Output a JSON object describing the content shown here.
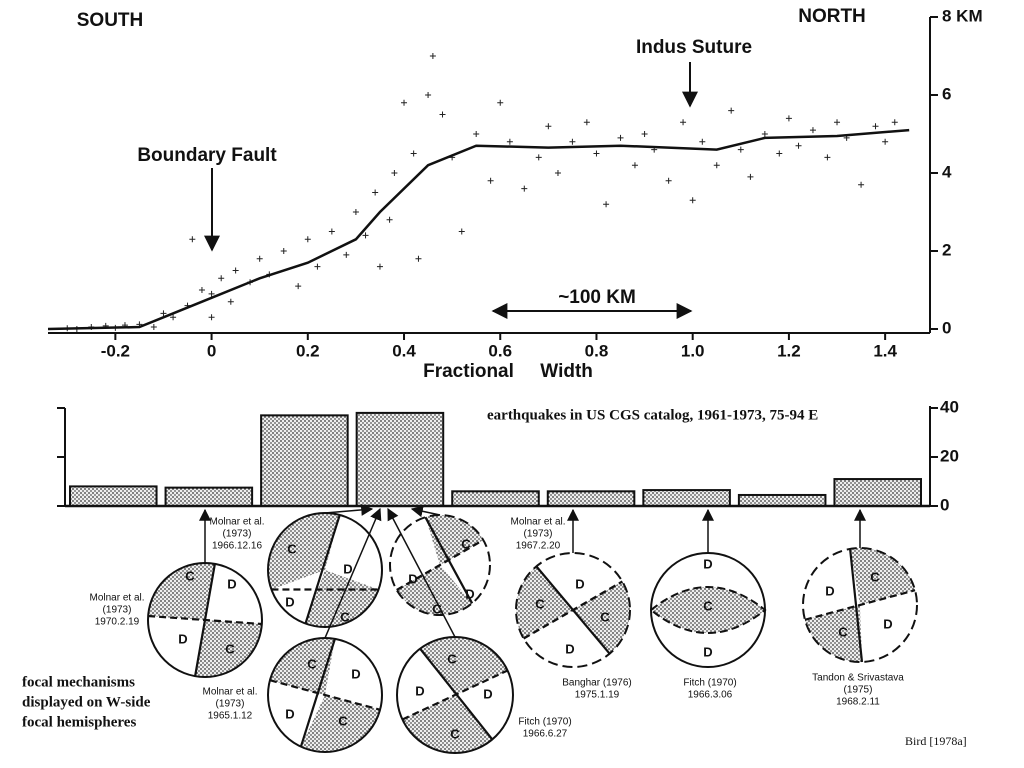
{
  "chart_data": [
    {
      "type": "line",
      "south": "SOUTH",
      "north": "NORTH",
      "xlabel": "Fractional     Width",
      "annotations": [
        "Boundary Fault",
        "Indus Suture",
        "~100 KM"
      ],
      "x": [
        -0.34,
        -0.15,
        -0.1,
        0,
        0.1,
        0.2,
        0.3,
        0.35,
        0.45,
        0.55,
        0.7,
        0.85,
        1.05,
        1.15,
        1.3,
        1.45
      ],
      "values": [
        0,
        0.05,
        0.3,
        0.8,
        1.3,
        1.7,
        2.3,
        3.0,
        4.2,
        4.7,
        4.65,
        4.7,
        4.6,
        4.9,
        4.95,
        5.1
      ],
      "scatter_x": [
        -0.3,
        -0.28,
        -0.25,
        -0.22,
        -0.2,
        -0.18,
        -0.15,
        -0.12,
        -0.1,
        -0.08,
        -0.05,
        -0.04,
        -0.02,
        0,
        0,
        0.02,
        0.04,
        0.05,
        0.08,
        0.1,
        0.12,
        0.15,
        0.18,
        0.2,
        0.22,
        0.25,
        0.28,
        0.3,
        0.32,
        0.34,
        0.35,
        0.37,
        0.38,
        0.4,
        0.42,
        0.43,
        0.45,
        0.46,
        0.48,
        0.5,
        0.52,
        0.55,
        0.58,
        0.6,
        0.62,
        0.65,
        0.68,
        0.7,
        0.72,
        0.75,
        0.78,
        0.8,
        0.82,
        0.85,
        0.88,
        0.9,
        0.92,
        0.95,
        0.98,
        1.0,
        1.02,
        1.05,
        1.08,
        1.1,
        1.12,
        1.15,
        1.18,
        1.2,
        1.22,
        1.25,
        1.28,
        1.3,
        1.32,
        1.35,
        1.38,
        1.4,
        1.42
      ],
      "scatter_y": [
        0.02,
        0,
        0.05,
        0.08,
        0.03,
        0.1,
        0.12,
        0.05,
        0.4,
        0.3,
        0.6,
        2.3,
        1.0,
        0.9,
        0.3,
        1.3,
        0.7,
        1.5,
        1.2,
        1.8,
        1.4,
        2.0,
        1.1,
        2.3,
        1.6,
        2.5,
        1.9,
        3.0,
        2.4,
        3.5,
        1.6,
        2.8,
        4.0,
        5.8,
        4.5,
        1.8,
        6.0,
        7.0,
        5.5,
        4.4,
        2.5,
        5.0,
        3.8,
        5.8,
        4.8,
        3.6,
        4.4,
        5.2,
        4.0,
        4.8,
        5.3,
        4.5,
        3.2,
        4.9,
        4.2,
        5.0,
        4.6,
        3.8,
        5.3,
        3.3,
        4.8,
        4.2,
        5.6,
        4.6,
        3.9,
        5.0,
        4.5,
        5.4,
        4.7,
        5.1,
        4.4,
        5.3,
        4.9,
        3.7,
        5.2,
        4.8,
        5.3
      ],
      "xlim": [
        -0.34,
        1.46
      ],
      "ylim": [
        0,
        8
      ],
      "xticks": [
        -0.2,
        0,
        0.2,
        0.4,
        0.6,
        0.8,
        {
          "value": 1,
          "label": "1.0"
        },
        1.2,
        1.4
      ],
      "yticks": [
        0,
        2,
        4,
        6,
        {
          "value": 8,
          "label": "8 KM"
        }
      ]
    },
    {
      "type": "histogram",
      "title": "earthquakes in US CGS catalog, 1961-1973, 75-94 E",
      "bins": [
        -0.3,
        -0.1,
        0.1,
        0.3,
        0.5,
        0.7,
        0.9,
        1.1,
        1.3,
        1.5
      ],
      "values": [
        8,
        7.5,
        37,
        38,
        6,
        6,
        6.5,
        4.5,
        11
      ],
      "ylim": [
        0,
        40
      ],
      "yticks": [
        0,
        20,
        40
      ]
    }
  ],
  "focal_mechanisms": [
    {
      "letters": [
        "C",
        "D",
        "D",
        "C"
      ]
    },
    {
      "letters": [
        "C",
        "D",
        "D",
        "C"
      ]
    },
    {
      "letters": [
        "C",
        "D",
        "C",
        "D"
      ]
    },
    {
      "letters": [
        "C",
        "D",
        "D",
        "C"
      ]
    },
    {
      "letters": [
        "C",
        "D",
        "D",
        "C"
      ]
    },
    {
      "letters": [
        "D",
        "C",
        "C",
        "D"
      ]
    },
    {
      "letters": [
        "D",
        "C",
        "D"
      ]
    },
    {
      "letters": [
        "C",
        "D",
        "C",
        "D"
      ]
    }
  ],
  "captions": [
    [
      "Molnar et al.",
      "(1973)",
      "1970.2.19"
    ],
    [
      "Molnar et al.",
      "(1973)",
      "1966.12.16"
    ],
    [
      "Molnar et al.",
      "(1973)",
      "1965.1.12"
    ],
    [
      "Fitch (1970)",
      "1966.6.27"
    ],
    [
      "Molnar et al.",
      "(1973)",
      "1967.2.20"
    ],
    [
      "Banghar (1976)",
      "1975.1.19"
    ],
    [
      "Fitch (1970)",
      "1966.3.06"
    ],
    [
      "Tandon & Srivastava",
      "(1975)",
      "1968.2.11"
    ]
  ],
  "note": [
    "focal mechanisms",
    "displayed on W-side",
    "focal hemispheres"
  ],
  "credit": "Bird [1978a]"
}
